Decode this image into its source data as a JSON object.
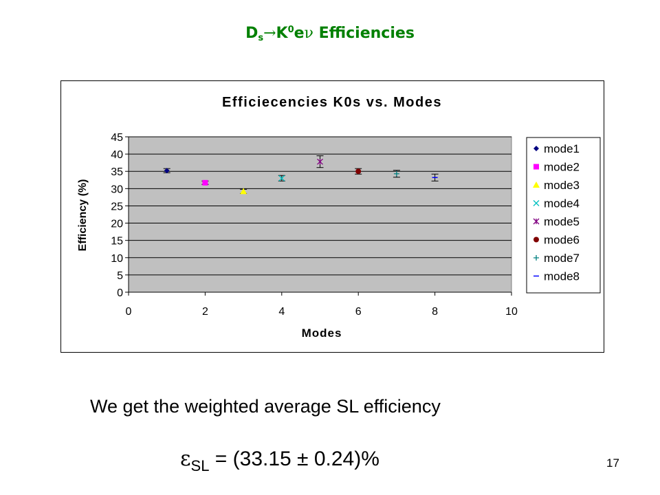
{
  "slide": {
    "title_main": "D",
    "title_sub": "s",
    "title_arrow": "→",
    "title_k": "K",
    "title_k_sup": "0",
    "title_e": "e",
    "title_nu": "ν",
    "title_rest": " Efficiencies",
    "body_text": "We get the weighted average SL efficiency",
    "formula_epsilon": "ε",
    "formula_sub": "SL",
    "formula_value": " = (33.15 ± 0.24)%",
    "page_number": "17"
  },
  "chart_data": {
    "type": "scatter",
    "title": "Efficiecencies K0s vs. Modes",
    "xlabel": "Modes",
    "ylabel": "Efficiency (%)",
    "xlim": [
      0,
      10
    ],
    "ylim": [
      0,
      45
    ],
    "x_ticks": [
      0,
      2,
      4,
      6,
      8,
      10
    ],
    "y_ticks": [
      0,
      5,
      10,
      15,
      20,
      25,
      30,
      35,
      40,
      45
    ],
    "grid": "horizontal",
    "plot_background": "#c0c0c0",
    "legend_position": "right",
    "series": [
      {
        "name": "mode1",
        "x": 1,
        "y": 35.2,
        "err": 0.6,
        "marker": "diamond",
        "color": "#000080"
      },
      {
        "name": "mode2",
        "x": 2,
        "y": 31.7,
        "err": 0.5,
        "marker": "square",
        "color": "#ff00ff"
      },
      {
        "name": "mode3",
        "x": 3,
        "y": 29.2,
        "err": 0.6,
        "marker": "triangle",
        "color": "#ffff00"
      },
      {
        "name": "mode4",
        "x": 4,
        "y": 33.0,
        "err": 0.8,
        "marker": "x",
        "color": "#00c0c0"
      },
      {
        "name": "mode5",
        "x": 5,
        "y": 37.8,
        "err": 1.7,
        "marker": "star",
        "color": "#800080"
      },
      {
        "name": "mode6",
        "x": 6,
        "y": 35.0,
        "err": 0.8,
        "marker": "circle",
        "color": "#800000"
      },
      {
        "name": "mode7",
        "x": 7,
        "y": 34.3,
        "err": 1.0,
        "marker": "plus",
        "color": "#008080"
      },
      {
        "name": "mode8",
        "x": 8,
        "y": 33.2,
        "err": 1.0,
        "marker": "dash",
        "color": "#0000ff"
      }
    ]
  }
}
